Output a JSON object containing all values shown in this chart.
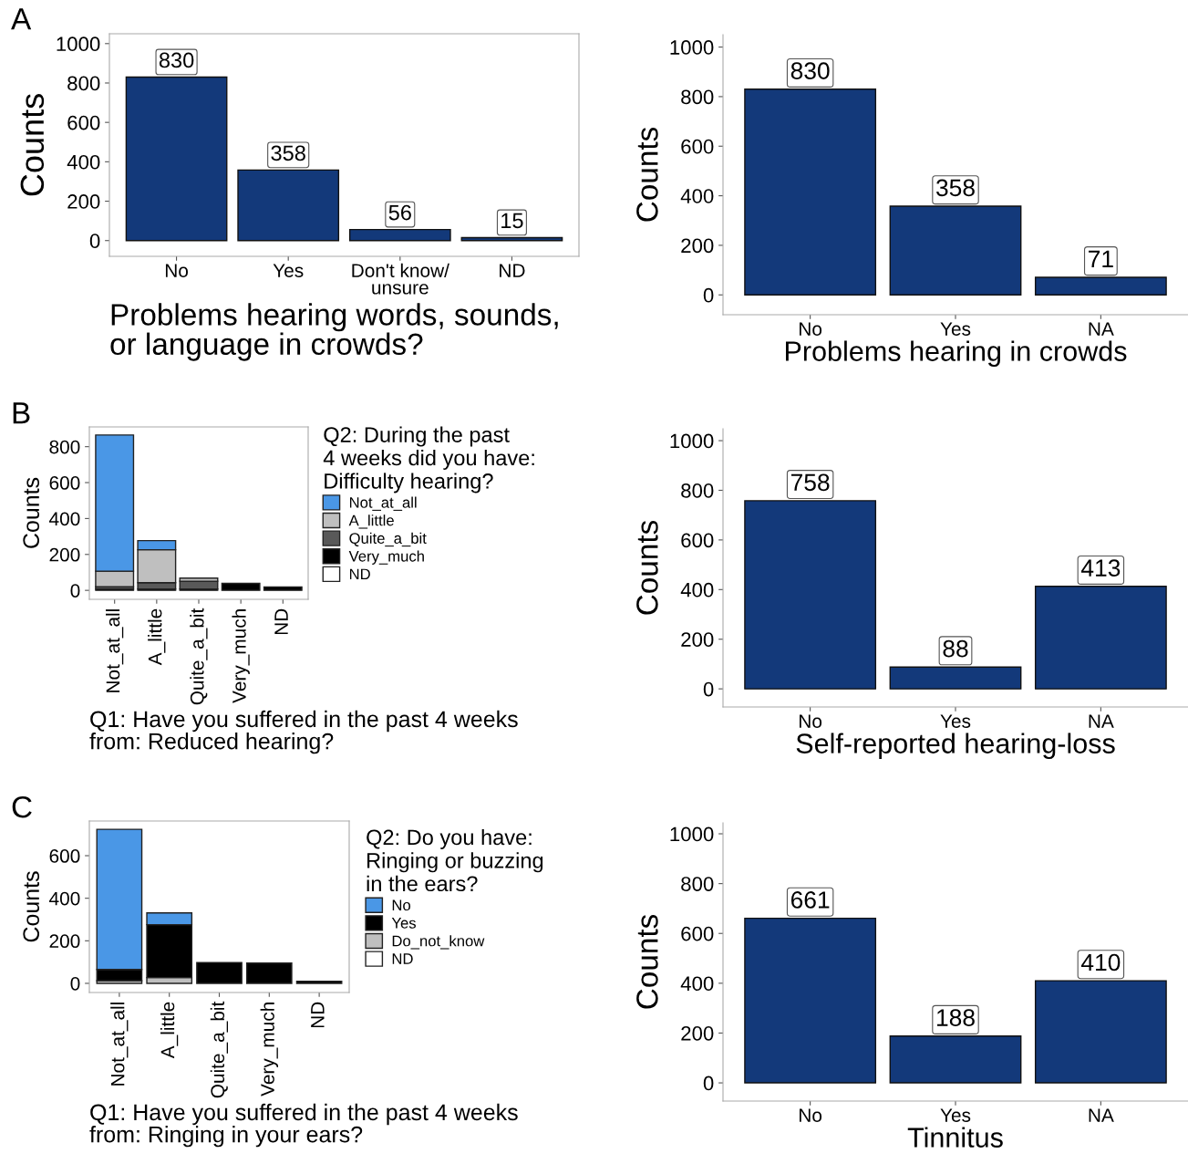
{
  "chart_data": [
    {
      "type": "bar",
      "categories": [
        "No",
        "Yes",
        "Don't know/\nunsure",
        "ND"
      ],
      "values": [
        830,
        358,
        56,
        15
      ],
      "color": "#13397a",
      "xlabel": "Problems hearing words, sounds,\nor language in crowds?",
      "ylabel": "Counts",
      "ylim": [
        -80,
        1050
      ],
      "yticks": [
        0,
        200,
        400,
        600,
        800,
        1000
      ],
      "data_labels": true,
      "grid": false,
      "legend": false,
      "annotations": [
        "A"
      ]
    },
    {
      "type": "bar",
      "categories": [
        "No",
        "Yes",
        "NA"
      ],
      "values": [
        830,
        358,
        71
      ],
      "color": "#13397a",
      "xlabel": "Problems hearing in crowds",
      "ylabel": "Counts",
      "ylim": [
        -80,
        1050
      ],
      "yticks": [
        0,
        200,
        400,
        600,
        800,
        1000
      ],
      "data_labels": true,
      "grid": false,
      "legend": false
    },
    {
      "type": "bar",
      "stacked": true,
      "categories": [
        "Not_at_all",
        "A_little",
        "Quite_a_bit",
        "Very_much",
        "ND"
      ],
      "xlabel": "Q1: Have you suffered in the past 4 weeks\nfrom: Reduced hearing?",
      "ylabel": "Counts",
      "legend_title": "Q2: During the past\n4 weeks did you have:\nDifficulty hearing?",
      "legend": "right",
      "ylim": [
        -50,
        910
      ],
      "yticks": [
        0,
        200,
        400,
        600,
        800
      ],
      "grid": false,
      "annotations": [
        "B"
      ],
      "series": [
        {
          "name": "ND",
          "color": "#ffffff",
          "values": [
            null,
            null,
            null,
            null,
            null
          ]
        },
        {
          "name": "Very_much",
          "color": "#000000",
          "values": [
            8,
            8,
            8,
            39,
            19
          ]
        },
        {
          "name": "Quite_a_bit",
          "color": "#595959",
          "values": [
            12,
            35,
            43,
            null,
            null
          ]
        },
        {
          "name": "A_little",
          "color": "#bfbfbf",
          "values": [
            87,
            183,
            17,
            null,
            null
          ]
        },
        {
          "name": "Not_at_all",
          "color": "#4a97e6",
          "values": [
            758,
            51,
            null,
            null,
            null
          ]
        }
      ]
    },
    {
      "type": "bar",
      "categories": [
        "No",
        "Yes",
        "NA"
      ],
      "values": [
        758,
        88,
        413
      ],
      "color": "#13397a",
      "xlabel": "Self-reported hearing-loss",
      "ylabel": "Counts",
      "ylim": [
        -73,
        1048
      ],
      "yticks": [
        0,
        200,
        400,
        600,
        800,
        1000
      ],
      "data_labels": true,
      "grid": false,
      "legend": false
    },
    {
      "type": "bar",
      "stacked": true,
      "categories": [
        "Not_at_all",
        "A_little",
        "Quite_a_bit",
        "Very_much",
        "ND"
      ],
      "xlabel": "Q1: Have you suffered in the past 4 weeks\nfrom: Ringing in your ears?",
      "ylabel": "Counts",
      "legend_title": "Q2: Do you have:\nRinging or buzzing\nin the ears?",
      "legend": "right",
      "ylim": [
        -43,
        763
      ],
      "yticks": [
        0,
        200,
        400,
        600
      ],
      "grid": false,
      "annotations": [
        "C"
      ],
      "series": [
        {
          "name": "ND",
          "color": "#ffffff",
          "values": [
            null,
            null,
            null,
            null,
            null
          ]
        },
        {
          "name": "Do_not_know",
          "color": "#bfbfbf",
          "values": [
            13,
            27,
            null,
            null,
            null
          ]
        },
        {
          "name": "Yes",
          "color": "#000000",
          "values": [
            52,
            249,
            98,
            95,
            10
          ]
        },
        {
          "name": "No",
          "color": "#4a97e6",
          "values": [
            659,
            55,
            null,
            null,
            null
          ]
        }
      ]
    },
    {
      "type": "bar",
      "categories": [
        "No",
        "Yes",
        "NA"
      ],
      "values": [
        661,
        188,
        410
      ],
      "color": "#13397a",
      "xlabel": "Tinnitus",
      "ylabel": "Counts",
      "ylim": [
        -73,
        1044
      ],
      "yticks": [
        0,
        200,
        400,
        600,
        800,
        1000
      ],
      "data_labels": true,
      "grid": false,
      "legend": false
    }
  ]
}
